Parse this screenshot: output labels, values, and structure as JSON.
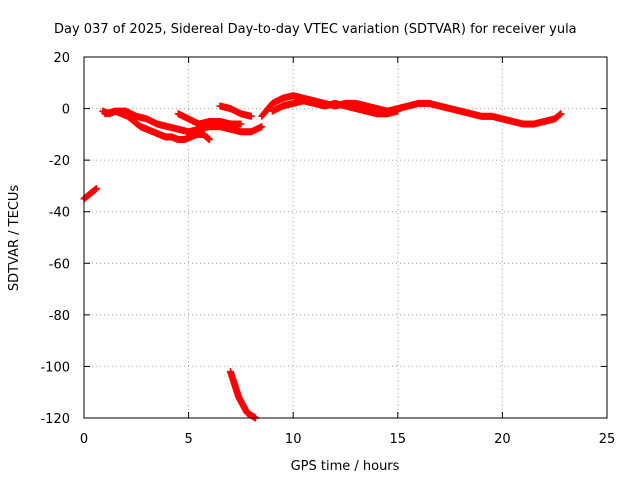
{
  "chart_data": {
    "type": "scatter",
    "title": "Day 037 of 2025, Sidereal Day-to-day VTEC variation (SDTVAR) for receiver yula",
    "xlabel": "GPS time / hours",
    "ylabel": "SDTVAR / TECUs",
    "xlim": [
      0,
      25
    ],
    "ylim": [
      -120,
      20
    ],
    "x_ticks": [
      "0",
      "5",
      "10",
      "15",
      "20",
      "25"
    ],
    "y_ticks": [
      "20",
      "0",
      "-20",
      "-40",
      "-60",
      "-80",
      "-100",
      "-120"
    ],
    "grid": true,
    "marker": "+",
    "color": "#ff0000",
    "series": [
      {
        "x": [
          0.0,
          0.3,
          0.6,
          0.9,
          1.2,
          1.5,
          1.8,
          2.1,
          2.4,
          2.7,
          3.0,
          3.3,
          3.6,
          3.9,
          4.2,
          4.5,
          4.8,
          5.1,
          5.4,
          5.7,
          6.0
        ],
        "y": [
          -35,
          -33,
          -31,
          -1,
          -2,
          -1,
          -2,
          -3,
          -5,
          -7,
          -8,
          -9,
          -10,
          -11,
          -11,
          -12,
          -12,
          -11,
          -10,
          -10,
          -12
        ]
      },
      {
        "x": [
          1.0,
          1.5,
          2.0,
          2.5,
          3.0,
          3.5,
          4.0,
          4.5,
          5.0,
          5.5,
          6.0,
          6.5,
          7.0,
          7.5,
          8.0,
          8.5
        ],
        "y": [
          -2,
          -1,
          -1,
          -3,
          -4,
          -6,
          -7,
          -8,
          -9,
          -8,
          -7,
          -7,
          -8,
          -9,
          -9,
          -7
        ]
      },
      {
        "x": [
          4.5,
          5.0,
          5.5,
          6.0,
          6.5,
          7.0,
          7.5
        ],
        "y": [
          -2,
          -4,
          -6,
          -5,
          -5,
          -6,
          -6
        ]
      },
      {
        "x": [
          6.5,
          7.0,
          7.5,
          8.0
        ],
        "y": [
          1,
          0,
          -2,
          -3
        ]
      },
      {
        "x": [
          7.0,
          7.2,
          7.4,
          7.6,
          7.8,
          8.0,
          8.2
        ],
        "y": [
          -102,
          -107,
          -112,
          -115,
          -118,
          -119,
          -120
        ]
      },
      {
        "x": [
          8.5,
          9.0,
          9.5,
          10.0,
          10.5,
          11.0,
          11.5,
          12.0,
          12.5,
          13.0,
          13.5,
          14.0,
          14.5,
          15.0,
          15.5,
          16.0,
          16.5,
          17.0,
          17.5,
          18.0,
          18.5,
          19.0,
          19.5,
          20.0,
          20.5,
          21.0,
          21.5,
          22.0,
          22.5,
          22.8
        ],
        "y": [
          -3,
          2,
          4,
          5,
          4,
          3,
          2,
          1,
          2,
          2,
          1,
          0,
          -1,
          0,
          1,
          2,
          2,
          1,
          0,
          -1,
          -2,
          -3,
          -3,
          -4,
          -5,
          -6,
          -6,
          -5,
          -4,
          -2
        ]
      },
      {
        "x": [
          9.0,
          9.5,
          10.0,
          10.5,
          11.0,
          11.5,
          12.0,
          12.5,
          13.0,
          13.5,
          14.0,
          14.5,
          15.0
        ],
        "y": [
          -1,
          1,
          2,
          3,
          2,
          1,
          2,
          1,
          0,
          -1,
          -2,
          -2,
          -1
        ]
      }
    ]
  }
}
